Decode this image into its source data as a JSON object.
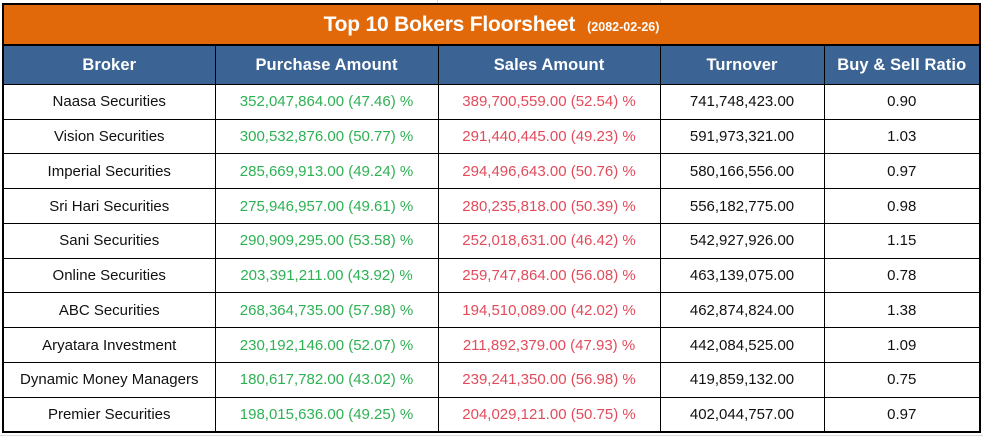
{
  "title": {
    "text": "Top 10 Bokers Floorsheet",
    "date_label": "(2082-02-26)"
  },
  "table": {
    "columns": [
      "Broker",
      "Purchase Amount",
      "Sales Amount",
      "Turnover",
      "Buy & Sell Ratio"
    ],
    "row_keys": [
      "broker",
      "purchase",
      "sales",
      "turnover",
      "ratio"
    ],
    "rows": [
      {
        "broker": "Naasa Securities",
        "purchase": "352,047,864.00 (47.46) %",
        "sales": "389,700,559.00 (52.54) %",
        "turnover": "741,748,423.00",
        "ratio": "0.90"
      },
      {
        "broker": "Vision Securities",
        "purchase": "300,532,876.00 (50.77) %",
        "sales": "291,440,445.00 (49.23) %",
        "turnover": "591,973,321.00",
        "ratio": "1.03"
      },
      {
        "broker": "Imperial Securities",
        "purchase": "285,669,913.00 (49.24) %",
        "sales": "294,496,643.00 (50.76) %",
        "turnover": "580,166,556.00",
        "ratio": "0.97"
      },
      {
        "broker": "Sri Hari Securities",
        "purchase": "275,946,957.00 (49.61) %",
        "sales": "280,235,818.00 (50.39) %",
        "turnover": "556,182,775.00",
        "ratio": "0.98"
      },
      {
        "broker": "Sani Securities",
        "purchase": "290,909,295.00 (53.58) %",
        "sales": "252,018,631.00 (46.42) %",
        "turnover": "542,927,926.00",
        "ratio": "1.15"
      },
      {
        "broker": "Online Securities",
        "purchase": "203,391,211.00 (43.92) %",
        "sales": "259,747,864.00 (56.08) %",
        "turnover": "463,139,075.00",
        "ratio": "0.78"
      },
      {
        "broker": "ABC Securities",
        "purchase": "268,364,735.00 (57.98) %",
        "sales": "194,510,089.00 (42.02) %",
        "turnover": "462,874,824.00",
        "ratio": "1.38"
      },
      {
        "broker": "Aryatara Investment",
        "purchase": "230,192,146.00 (52.07) %",
        "sales": "211,892,379.00 (47.93) %",
        "turnover": "442,084,525.00",
        "ratio": "1.09"
      },
      {
        "broker": "Dynamic Money Managers",
        "purchase": "180,617,782.00 (43.02) %",
        "sales": "239,241,350.00 (56.98) %",
        "turnover": "419,859,132.00",
        "ratio": "0.75"
      },
      {
        "broker": "Premier  Securities",
        "purchase": "198,015,636.00 (49.25) %",
        "sales": "204,029,121.00 (50.75) %",
        "turnover": "402,044,757.00",
        "ratio": "0.97"
      }
    ]
  },
  "colors": {
    "title_bg": "#e2690a",
    "header_bg": "#3b6494",
    "purchase_text": "#2eb153",
    "sales_text": "#e24b5b",
    "border": "#000000"
  },
  "chart_data": {
    "type": "table",
    "title": "Top 10 Bokers Floorsheet",
    "subtitle": "(2082-02-26)",
    "columns": [
      "Broker",
      "Purchase Amount",
      "Sales Amount",
      "Turnover",
      "Buy & Sell Ratio"
    ],
    "series": [
      {
        "name": "Purchase Amount",
        "values": [
          352047864.0,
          300532876.0,
          285669913.0,
          275946957.0,
          290909295.0,
          203391211.0,
          268364735.0,
          230192146.0,
          180617782.0,
          198015636.0
        ]
      },
      {
        "name": "Purchase Percent",
        "values": [
          47.46,
          50.77,
          49.24,
          49.61,
          53.58,
          43.92,
          57.98,
          52.07,
          43.02,
          49.25
        ]
      },
      {
        "name": "Sales Amount",
        "values": [
          389700559.0,
          291440445.0,
          294496643.0,
          280235818.0,
          252018631.0,
          259747864.0,
          194510089.0,
          211892379.0,
          239241350.0,
          204029121.0
        ]
      },
      {
        "name": "Sales Percent",
        "values": [
          52.54,
          49.23,
          50.76,
          50.39,
          46.42,
          56.08,
          42.02,
          47.93,
          56.98,
          50.75
        ]
      },
      {
        "name": "Turnover",
        "values": [
          741748423.0,
          591973321.0,
          580166556.0,
          556182775.0,
          542927926.0,
          463139075.0,
          462874824.0,
          442084525.0,
          419859132.0,
          402044757.0
        ]
      },
      {
        "name": "Buy & Sell Ratio",
        "values": [
          0.9,
          1.03,
          0.97,
          0.98,
          1.15,
          0.78,
          1.38,
          1.09,
          0.75,
          0.97
        ]
      }
    ],
    "categories": [
      "Naasa Securities",
      "Vision Securities",
      "Imperial Securities",
      "Sri Hari Securities",
      "Sani Securities",
      "Online Securities",
      "ABC Securities",
      "Aryatara Investment",
      "Dynamic Money Managers",
      "Premier  Securities"
    ]
  }
}
